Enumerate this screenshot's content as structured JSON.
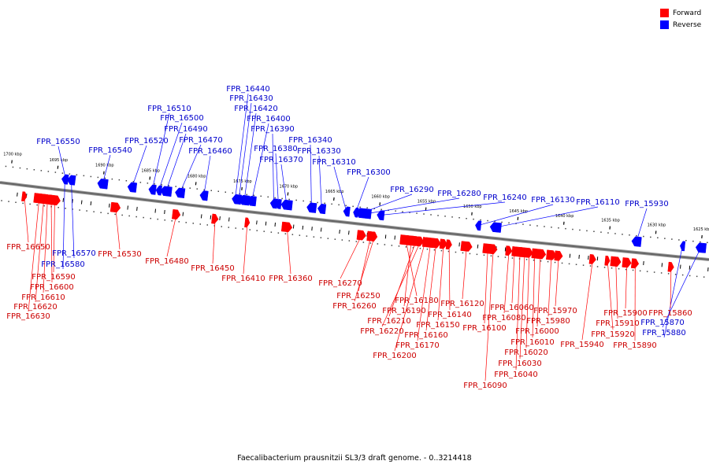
{
  "legend": {
    "forward_label": "Forward",
    "reverse_label": "Reverse",
    "forward_color": "#ff0000",
    "reverse_color": "#0000ff"
  },
  "colors": {
    "forward_label_text": "#cc0000",
    "reverse_label_text": "#0000cc",
    "backbone": "#666666",
    "tick": "#000000"
  },
  "footer": "Faecalibacterium prausnitzii SL3/3 draft genome. - 0..3214418",
  "axis": {
    "unit": "kbp",
    "start_kbp": 1700,
    "end_kbp": 1625,
    "tick_labels": [
      "1700 kbp",
      "1695 kbp",
      "1690 kbp",
      "1685 kbp",
      "1680 kbp",
      "1675 kbp",
      "1670 kbp",
      "1665 kbp",
      "1660 kbp",
      "1655 kbp",
      "1650 kbp",
      "1645 kbp",
      "1640 kbp",
      "1635 kbp",
      "1630 kbp",
      "1625 kbp"
    ]
  },
  "genes": {
    "reverse": [
      {
        "label": "FPR_16550",
        "kbp": 1694.0
      },
      {
        "label": "FPR_16540",
        "kbp": 1690.0
      },
      {
        "label": "FPR_16520",
        "kbp": 1686.8
      },
      {
        "label": "FPR_16510",
        "kbp": 1684.6
      },
      {
        "label": "FPR_16500",
        "kbp": 1683.9
      },
      {
        "label": "FPR_16490",
        "kbp": 1683.1
      },
      {
        "label": "FPR_16470",
        "kbp": 1681.6
      },
      {
        "label": "FPR_16460",
        "kbp": 1679.0
      },
      {
        "label": "FPR_16440",
        "kbp": 1675.6
      },
      {
        "label": "FPR_16430",
        "kbp": 1675.2
      },
      {
        "label": "FPR_16420",
        "kbp": 1674.6
      },
      {
        "label": "FPR_16400",
        "kbp": 1673.8
      },
      {
        "label": "FPR_16390",
        "kbp": 1671.4
      },
      {
        "label": "FPR_16380",
        "kbp": 1670.9
      },
      {
        "label": "FPR_16370",
        "kbp": 1670.0
      },
      {
        "label": "FPR_16340",
        "kbp": 1667.3
      },
      {
        "label": "FPR_16330",
        "kbp": 1666.2
      },
      {
        "label": "FPR_16310",
        "kbp": 1663.5
      },
      {
        "label": "FPR_16300",
        "kbp": 1662.5
      },
      {
        "label": "FPR_16290",
        "kbp": 1661.9
      },
      {
        "label": "FPR_16280",
        "kbp": 1661.3
      },
      {
        "label": "FPR_16240",
        "kbp": 1659.8
      },
      {
        "label": "FPR_16130",
        "kbp": 1649.2
      },
      {
        "label": "FPR_16110",
        "kbp": 1647.3
      },
      {
        "label": "FPR_15930",
        "kbp": 1632.0
      },
      {
        "label": "FPR_16570",
        "kbp": 1693.4
      },
      {
        "label": "FPR_16580",
        "kbp": 1694.1
      },
      {
        "label": "FPR_15880",
        "kbp": 1627.0
      },
      {
        "label": "FPR_15870",
        "kbp": 1625.0
      }
    ],
    "forward": [
      {
        "label": "FPR_16650",
        "kbp": 1698.2
      },
      {
        "label": "FPR_16630",
        "kbp": 1696.6
      },
      {
        "label": "FPR_16620",
        "kbp": 1696.1
      },
      {
        "label": "FPR_16610",
        "kbp": 1695.7
      },
      {
        "label": "FPR_16600",
        "kbp": 1695.3
      },
      {
        "label": "FPR_16590",
        "kbp": 1694.9
      },
      {
        "label": "FPR_16530",
        "kbp": 1688.3
      },
      {
        "label": "FPR_16480",
        "kbp": 1681.7
      },
      {
        "label": "FPR_16450",
        "kbp": 1677.5
      },
      {
        "label": "FPR_16410",
        "kbp": 1674.0
      },
      {
        "label": "FPR_16360",
        "kbp": 1669.7
      },
      {
        "label": "FPR_16270",
        "kbp": 1661.6
      },
      {
        "label": "FPR_16250",
        "kbp": 1660.6
      },
      {
        "label": "FPR_16260",
        "kbp": 1660.2
      },
      {
        "label": "FPR_16180",
        "kbp": 1656.8
      },
      {
        "label": "FPR_16190",
        "kbp": 1656.2
      },
      {
        "label": "FPR_16210",
        "kbp": 1655.7
      },
      {
        "label": "FPR_16220",
        "kbp": 1655.2
      },
      {
        "label": "FPR_16200",
        "kbp": 1654.7
      },
      {
        "label": "FPR_16170",
        "kbp": 1654.1
      },
      {
        "label": "FPR_16160",
        "kbp": 1653.5
      },
      {
        "label": "FPR_16150",
        "kbp": 1652.7
      },
      {
        "label": "FPR_16140",
        "kbp": 1652.1
      },
      {
        "label": "FPR_16120",
        "kbp": 1650.2
      },
      {
        "label": "FPR_16100",
        "kbp": 1647.9
      },
      {
        "label": "FPR_16090",
        "kbp": 1647.3
      },
      {
        "label": "FPR_16080",
        "kbp": 1645.6
      },
      {
        "label": "FPR_16060",
        "kbp": 1645.0
      },
      {
        "label": "FPR_16040",
        "kbp": 1644.4
      },
      {
        "label": "FPR_16030",
        "kbp": 1643.9
      },
      {
        "label": "FPR_16020",
        "kbp": 1643.4
      },
      {
        "label": "FPR_16010",
        "kbp": 1642.8
      },
      {
        "label": "FPR_16000",
        "kbp": 1642.2
      },
      {
        "label": "FPR_15980",
        "kbp": 1641.0
      },
      {
        "label": "FPR_15970",
        "kbp": 1640.2
      },
      {
        "label": "FPR_15940",
        "kbp": 1636.5
      },
      {
        "label": "FPR_15920",
        "kbp": 1634.9
      },
      {
        "label": "FPR_15910",
        "kbp": 1634.0
      },
      {
        "label": "FPR_15900",
        "kbp": 1632.8
      },
      {
        "label": "FPR_15890",
        "kbp": 1631.9
      },
      {
        "label": "FPR_15860",
        "kbp": 1628.0
      }
    ]
  }
}
